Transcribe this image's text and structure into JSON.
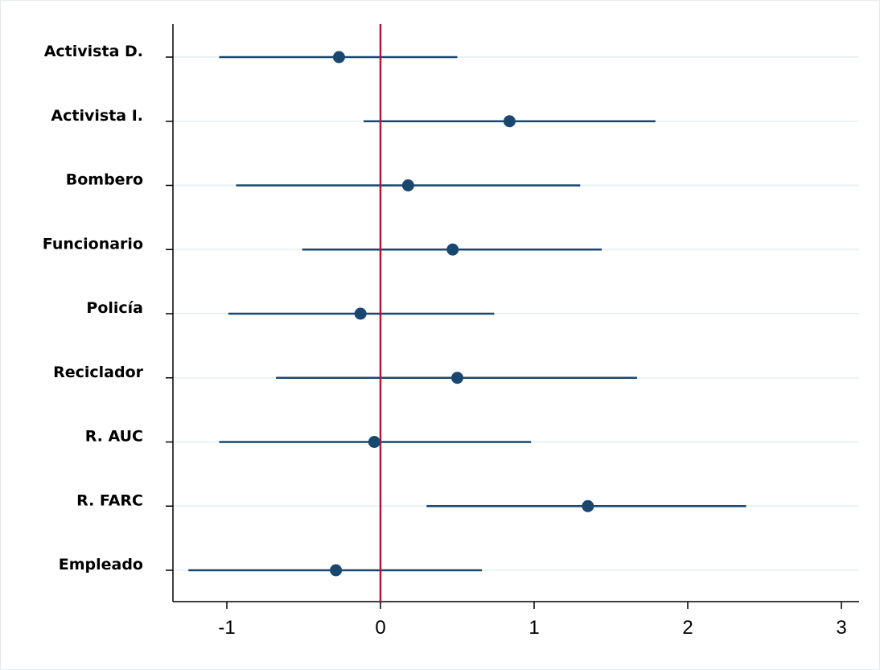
{
  "chart_data": {
    "type": "scatter",
    "subtype": "coefficient-plot-with-ci",
    "title": "",
    "xlabel": "",
    "ylabel": "",
    "categories": [
      "Activista D.",
      "Activista I.",
      "Bombero",
      "Funcionario",
      "Policía",
      "Reciclador",
      "R. AUC",
      "R. FARC",
      "Empleado"
    ],
    "series": [
      {
        "estimate": [
          -0.27,
          0.84,
          0.18,
          0.47,
          -0.13,
          0.5,
          -0.04,
          1.35,
          -0.29
        ],
        "ci_lower": [
          -1.05,
          -0.11,
          -0.94,
          -0.51,
          -0.99,
          -0.68,
          -1.05,
          0.3,
          -1.25
        ],
        "ci_upper": [
          0.5,
          1.79,
          1.3,
          1.44,
          0.74,
          1.67,
          0.98,
          2.38,
          0.66
        ]
      }
    ],
    "xlim": [
      -1.35,
      3.1
    ],
    "xticks": [
      -1,
      0,
      1,
      2,
      3
    ],
    "xtick_labels": [
      "-1",
      "0",
      "1",
      "2",
      "3"
    ],
    "reference_line": 0,
    "grid": "horizontal",
    "legend": "none",
    "colors": {
      "marker": "#1a476f",
      "ci": "#1a476f",
      "reference": "#b5163a",
      "grid": "#eaf2f3",
      "axis": "#000000"
    }
  }
}
